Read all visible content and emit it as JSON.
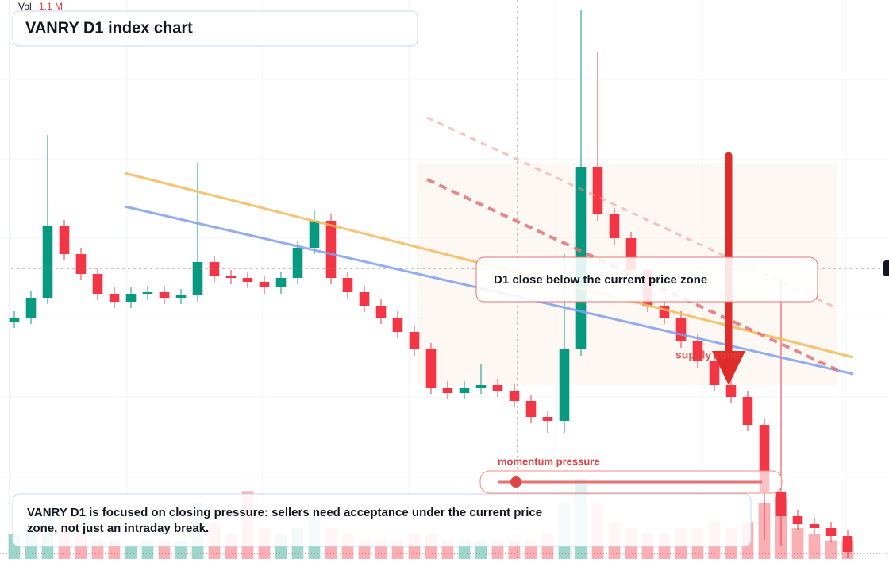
{
  "header": {
    "vol_label": "Vol",
    "vol_value": "1.1 M",
    "title": "VANRY D1 index chart"
  },
  "annotations": {
    "callout": "D1 close below the current price zone",
    "zone": "supply zone",
    "momentum": "momentum pressure",
    "note": "VANRY D1 is focused on closing pressure: sellers need acceptance under the current price zone, not just an intraday break."
  },
  "chart_data": {
    "type": "candlestick",
    "up_color": "#089981",
    "down_color": "#f23645",
    "ylim": [
      0,
      70.4
    ],
    "volume_lim": [
      0,
      1.8
    ],
    "open": [
      29.9,
      30.4,
      32.9,
      41.9,
      38.4,
      35.9,
      33.4,
      32.4,
      33.4,
      33.6,
      32.9,
      33.2,
      37.4,
      35.6,
      35.4,
      34.9,
      34.2,
      35.4,
      39.2,
      42.6,
      35.4,
      33.6,
      31.9,
      30.4,
      28.6,
      26.4,
      21.6,
      20.9,
      21.6,
      21.9,
      21.2,
      19.9,
      17.9,
      17.4,
      26.4,
      49.4,
      43.4,
      40.4,
      36.4,
      31.9,
      30.4,
      27.4,
      24.9,
      21.9,
      20.4,
      16.9,
      8.4,
      5.4,
      4.4,
      3.9,
      2.9
    ],
    "high": [
      31.2,
      33.7,
      53.4,
      42.7,
      39.2,
      36.7,
      34.2,
      34.2,
      34.4,
      34.4,
      34.0,
      49.9,
      38.2,
      36.4,
      36.2,
      35.7,
      36.2,
      40.0,
      43.9,
      43.4,
      36.2,
      34.4,
      32.7,
      31.2,
      29.4,
      27.2,
      22.4,
      22.4,
      24.6,
      22.7,
      22.0,
      20.7,
      18.7,
      38.4,
      69.2,
      63.9,
      44.2,
      41.2,
      37.2,
      32.7,
      31.2,
      28.2,
      25.7,
      22.7,
      21.2,
      17.7,
      35.4,
      6.2,
      5.2,
      4.7,
      3.7
    ],
    "low": [
      29.1,
      29.6,
      32.1,
      37.6,
      35.1,
      32.6,
      31.6,
      31.6,
      32.6,
      32.1,
      32.1,
      32.4,
      34.8,
      34.6,
      34.1,
      33.4,
      33.4,
      34.6,
      38.4,
      34.6,
      32.8,
      31.1,
      29.6,
      27.8,
      25.6,
      20.8,
      20.1,
      20.1,
      20.8,
      20.4,
      19.1,
      17.1,
      15.9,
      15.9,
      25.6,
      42.6,
      39.6,
      35.6,
      31.1,
      29.6,
      26.6,
      24.1,
      21.1,
      19.6,
      16.1,
      2.4,
      1.6,
      3.6,
      3.1,
      2.1,
      0.1
    ],
    "close": [
      30.4,
      32.9,
      41.9,
      38.4,
      35.9,
      33.4,
      32.4,
      33.4,
      33.6,
      32.9,
      33.2,
      37.4,
      35.6,
      35.4,
      34.9,
      34.2,
      35.4,
      39.2,
      42.6,
      35.4,
      33.6,
      31.9,
      30.4,
      28.6,
      26.4,
      21.6,
      20.9,
      21.6,
      21.9,
      21.2,
      19.9,
      17.9,
      17.4,
      26.4,
      49.4,
      43.4,
      40.4,
      36.4,
      31.9,
      30.4,
      27.4,
      24.9,
      21.9,
      20.4,
      16.9,
      8.4,
      5.4,
      4.4,
      3.9,
      2.9,
      0.9
    ],
    "volume": [
      0.4,
      0.5,
      0.8,
      0.6,
      0.4,
      0.3,
      0.3,
      0.2,
      0.3,
      0.3,
      0.3,
      0.9,
      0.6,
      0.4,
      1.1,
      0.5,
      0.4,
      0.5,
      0.7,
      0.5,
      0.4,
      0.3,
      0.3,
      0.3,
      0.4,
      0.4,
      0.3,
      0.3,
      0.3,
      0.3,
      0.3,
      0.3,
      0.4,
      0.9,
      1.3,
      0.9,
      0.6,
      0.5,
      0.4,
      0.4,
      0.5,
      0.5,
      0.6,
      0.5,
      0.6,
      0.9,
      1.0,
      0.5,
      0.4,
      0.3,
      0.3
    ]
  }
}
